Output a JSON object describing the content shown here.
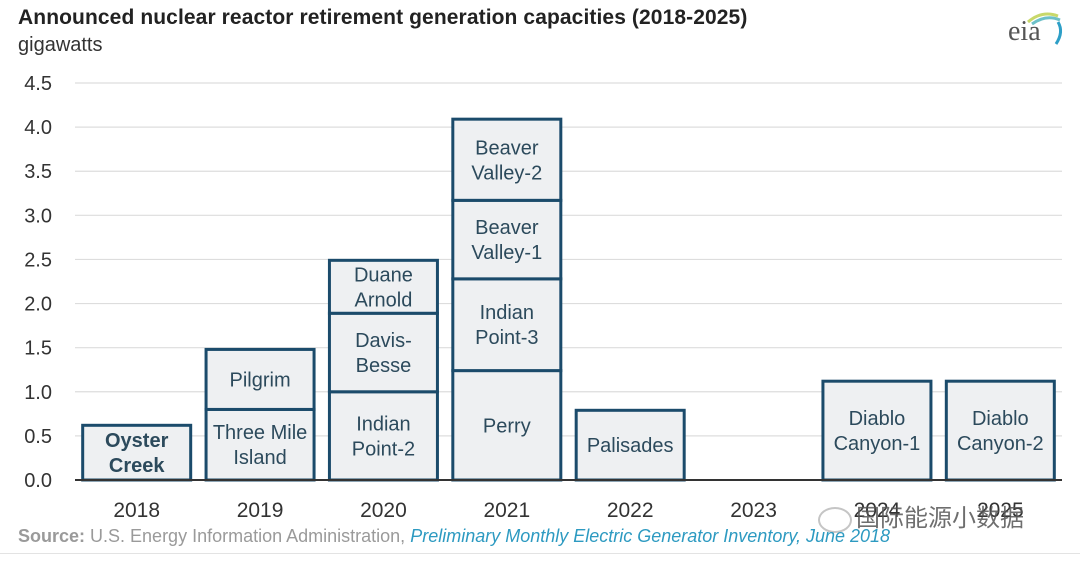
{
  "logo": {
    "text": "eia",
    "icon": "eia-logo-icon"
  },
  "watermark": {
    "text": "国际能源小数据",
    "icon": "wechat-icon"
  },
  "source": {
    "label": "Source:",
    "text": " U.S. Energy Information Administration, ",
    "link": "Preliminary Monthly Electric Generator Inventory, June 2018"
  },
  "chart_data": {
    "type": "bar",
    "stacked": true,
    "title": "Announced nuclear reactor retirement generation capacities (2018-2025)",
    "subtitle": "gigawatts",
    "xlabel": "",
    "ylabel": "gigawatts",
    "ylim": [
      0,
      4.5
    ],
    "yticks": [
      "0.0",
      "0.5",
      "1.0",
      "1.5",
      "2.0",
      "2.5",
      "3.0",
      "3.5",
      "4.0",
      "4.5"
    ],
    "grid": true,
    "legend": "none (segments labeled inline)",
    "categories": [
      "2018",
      "2019",
      "2020",
      "2021",
      "2022",
      "2023",
      "2024",
      "2025"
    ],
    "stacks": [
      {
        "category": "2018",
        "segments": [
          {
            "name": "Oyster Creek",
            "lines": [
              "Oyster",
              "Creek"
            ],
            "value": 0.62,
            "bold": true
          }
        ]
      },
      {
        "category": "2019",
        "segments": [
          {
            "name": "Three Mile Island",
            "lines": [
              "Three Mile",
              "Island"
            ],
            "value": 0.8
          },
          {
            "name": "Pilgrim",
            "lines": [
              "Pilgrim"
            ],
            "value": 0.68
          }
        ]
      },
      {
        "category": "2020",
        "segments": [
          {
            "name": "Indian Point-2",
            "lines": [
              "Indian",
              "Point-2"
            ],
            "value": 1.0
          },
          {
            "name": "Davis-Besse",
            "lines": [
              "Davis-",
              "Besse"
            ],
            "value": 0.89
          },
          {
            "name": "Duane Arnold",
            "lines": [
              "Duane",
              "Arnold"
            ],
            "value": 0.6
          }
        ]
      },
      {
        "category": "2021",
        "segments": [
          {
            "name": "Perry",
            "lines": [
              "Perry"
            ],
            "value": 1.24
          },
          {
            "name": "Indian Point-3",
            "lines": [
              "Indian",
              "Point-3"
            ],
            "value": 1.04
          },
          {
            "name": "Beaver Valley-1",
            "lines": [
              "Beaver",
              "Valley-1"
            ],
            "value": 0.89
          },
          {
            "name": "Beaver Valley-2",
            "lines": [
              "Beaver",
              "Valley-2"
            ],
            "value": 0.92
          }
        ]
      },
      {
        "category": "2022",
        "segments": [
          {
            "name": "Palisades",
            "lines": [
              "Palisades"
            ],
            "value": 0.79
          }
        ]
      },
      {
        "category": "2023",
        "segments": []
      },
      {
        "category": "2024",
        "segments": [
          {
            "name": "Diablo Canyon-1",
            "lines": [
              "Diablo",
              "Canyon-1"
            ],
            "value": 1.12
          }
        ]
      },
      {
        "category": "2025",
        "segments": [
          {
            "name": "Diablo Canyon-2",
            "lines": [
              "Diablo",
              "Canyon-2"
            ],
            "value": 1.12
          }
        ]
      }
    ],
    "colors": {
      "fill": "#eef0f2",
      "stroke": "#1b4b6b",
      "label": "#2c4a5c",
      "grid": "#dddddd",
      "axis": "#333333"
    }
  }
}
